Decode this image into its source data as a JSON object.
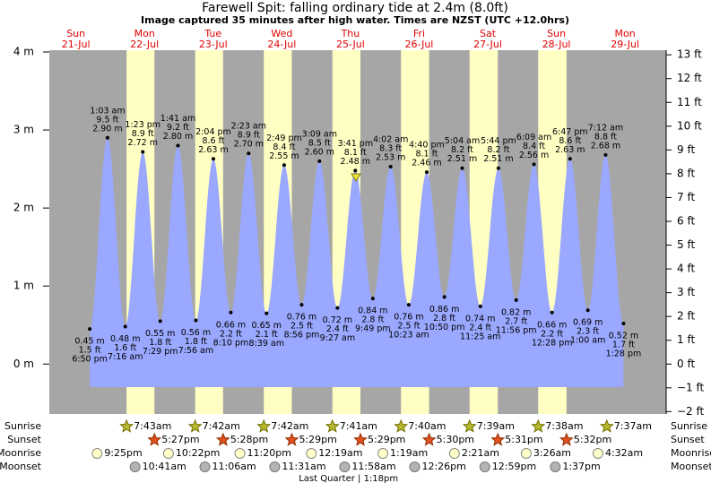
{
  "chart_data": {
    "type": "tide",
    "title": "Farewell Spit: falling  ordinary tide at 2.4m (8.0ft)",
    "subtitle": "Image captured 35 minutes after high water. Times are NZST (UTC +12.0hrs)",
    "ylim": [
      -0.64,
      4
    ],
    "yticks": [
      {
        "value": 0,
        "label": "0 m"
      },
      {
        "value": 1,
        "label": "1 m"
      },
      {
        "value": 2,
        "label": "2 m"
      },
      {
        "value": 3,
        "label": "3 m"
      },
      {
        "value": 4,
        "label": "4 m"
      }
    ],
    "y2lim": [
      -2.1,
      13.12
    ],
    "y2ticks": [
      {
        "value": -2,
        "label": "−2 ft"
      },
      {
        "value": -1,
        "label": "−1 ft"
      },
      {
        "value": 0,
        "label": "0 ft"
      },
      {
        "value": 1,
        "label": "1 ft"
      },
      {
        "value": 2,
        "label": "2 ft"
      },
      {
        "value": 3,
        "label": "3 ft"
      },
      {
        "value": 4,
        "label": "4 ft"
      },
      {
        "value": 5,
        "label": "5 ft"
      },
      {
        "value": 6,
        "label": "6 ft"
      },
      {
        "value": 7,
        "label": "7 ft"
      },
      {
        "value": 8,
        "label": "8 ft"
      },
      {
        "value": 9,
        "label": "9 ft"
      },
      {
        "value": 10,
        "label": "10 ft"
      },
      {
        "value": 11,
        "label": "11 ft"
      },
      {
        "value": 12,
        "label": "12 ft"
      },
      {
        "value": 13,
        "label": "13 ft"
      }
    ],
    "color": "#9aa8ff",
    "row_labels": [
      "Sunrise",
      "Sunset",
      "Moonrise",
      "Moonset"
    ],
    "days": [
      {
        "weekday": "Sun",
        "date": "21-Jul",
        "moonrise": "9:25pm",
        "tides": [
          {
            "time": "6:50 pm",
            "value": 0.45,
            "value_label": "0.45 m",
            "ft_label": "1.5 ft"
          }
        ]
      },
      {
        "weekday": "Mon",
        "date": "22-Jul",
        "sunrise": "7:43am",
        "sunset": "5:27pm",
        "moonrise": "10:22pm",
        "moonset": "10:41am",
        "tides": [
          {
            "time": "1:03 am",
            "value": 2.9,
            "value_label": "2.90 m",
            "ft_label": "9.5 ft"
          },
          {
            "time": "7:16 am",
            "value": 0.48,
            "value_label": "0.48 m",
            "ft_label": "1.6 ft"
          },
          {
            "time": "1:23 pm",
            "value": 2.72,
            "value_label": "2.72 m",
            "ft_label": "8.9 ft"
          },
          {
            "time": "7:29 pm",
            "value": 0.55,
            "value_label": "0.55 m",
            "ft_label": "1.8 ft"
          }
        ]
      },
      {
        "weekday": "Tue",
        "date": "23-Jul",
        "sunrise": "7:42am",
        "sunset": "5:28pm",
        "moonrise": "11:20pm",
        "moonset": "11:06am",
        "tides": [
          {
            "time": "1:41 am",
            "value": 2.8,
            "value_label": "2.80 m",
            "ft_label": "9.2 ft"
          },
          {
            "time": "7:56 am",
            "value": 0.56,
            "value_label": "0.56 m",
            "ft_label": "1.8 ft"
          },
          {
            "time": "2:04 pm",
            "value": 2.63,
            "value_label": "2.63 m",
            "ft_label": "8.6 ft"
          },
          {
            "time": "8:10 pm",
            "value": 0.66,
            "value_label": "0.66 m",
            "ft_label": "2.2 ft"
          }
        ]
      },
      {
        "weekday": "Wed",
        "date": "24-Jul",
        "sunrise": "7:42am",
        "sunset": "5:29pm",
        "moonset": "11:31am",
        "tides": [
          {
            "time": "2:23 am",
            "value": 2.7,
            "value_label": "2.70 m",
            "ft_label": "8.9 ft"
          },
          {
            "time": "8:39 am",
            "value": 0.65,
            "value_label": "0.65 m",
            "ft_label": "2.1 ft"
          },
          {
            "time": "2:49 pm",
            "value": 2.55,
            "value_label": "2.55 m",
            "ft_label": "8.4 ft"
          },
          {
            "time": "8:56 pm",
            "value": 0.76,
            "value_label": "0.76 m",
            "ft_label": "2.5 ft"
          }
        ]
      },
      {
        "weekday": "Thu",
        "date": "25-Jul",
        "sunrise": "7:41am",
        "sunset": "5:29pm",
        "moonrise": "12:19am",
        "moonset": "11:58am",
        "moon_phase": "Last Quarter | 1:18pm",
        "tides": [
          {
            "time": "3:09 am",
            "value": 2.6,
            "value_label": "2.60 m",
            "ft_label": "8.5 ft"
          },
          {
            "time": "9:27 am",
            "value": 0.72,
            "value_label": "0.72 m",
            "ft_label": "2.4 ft"
          },
          {
            "time": "3:41 pm",
            "value": 2.48,
            "value_label": "2.48 m",
            "ft_label": "8.1 ft"
          },
          {
            "time": "9:49 pm",
            "value": 0.84,
            "value_label": "0.84 m",
            "ft_label": "2.8 ft"
          }
        ]
      },
      {
        "weekday": "Fri",
        "date": "26-Jul",
        "sunrise": "7:40am",
        "sunset": "5:30pm",
        "moonrise": "1:19am",
        "moonset": "12:26pm",
        "tides": [
          {
            "time": "4:02 am",
            "value": 2.53,
            "value_label": "2.53 m",
            "ft_label": "8.3 ft"
          },
          {
            "time": "10:23 am",
            "value": 0.76,
            "value_label": "0.76 m",
            "ft_label": "2.5 ft"
          },
          {
            "time": "4:40 pm",
            "value": 2.46,
            "value_label": "2.46 m",
            "ft_label": "8.1 ft"
          },
          {
            "time": "10:50 pm",
            "value": 0.86,
            "value_label": "0.86 m",
            "ft_label": "2.8 ft"
          }
        ]
      },
      {
        "weekday": "Sat",
        "date": "27-Jul",
        "sunrise": "7:39am",
        "sunset": "5:31pm",
        "moonrise": "2:21am",
        "moonset": "12:59pm",
        "tides": [
          {
            "time": "5:04 am",
            "value": 2.51,
            "value_label": "2.51 m",
            "ft_label": "8.2 ft"
          },
          {
            "time": "11:25 am",
            "value": 0.74,
            "value_label": "0.74 m",
            "ft_label": "2.4 ft"
          },
          {
            "time": "5:44 pm",
            "value": 2.51,
            "value_label": "2.51 m",
            "ft_label": "8.2 ft"
          },
          {
            "time": "11:56 pm",
            "value": 0.82,
            "value_label": "0.82 m",
            "ft_label": "2.7 ft"
          }
        ]
      },
      {
        "weekday": "Sun",
        "date": "28-Jul",
        "sunrise": "7:38am",
        "sunset": "5:32pm",
        "moonrise": "3:26am",
        "moonset": "1:37pm",
        "tides": [
          {
            "time": "6:09 am",
            "value": 2.56,
            "value_label": "2.56 m",
            "ft_label": "8.4 ft"
          },
          {
            "time": "12:28 pm",
            "value": 0.66,
            "value_label": "0.66 m",
            "ft_label": "2.2 ft"
          },
          {
            "time": "6:47 pm",
            "value": 2.63,
            "value_label": "2.63 m",
            "ft_label": "8.6 ft"
          }
        ]
      },
      {
        "weekday": "Mon",
        "date": "29-Jul",
        "sunrise": "7:37am",
        "moonrise": "4:32am",
        "tides": [
          {
            "time": "1:00 am",
            "value": 0.69,
            "value_label": "0.69 m",
            "ft_label": "2.3 ft"
          },
          {
            "time": "7:12 am",
            "value": 2.68,
            "value_label": "2.68 m",
            "ft_label": "8.8 ft"
          },
          {
            "time": "1:28 pm",
            "value": 0.52,
            "value_label": "0.52 m",
            "ft_label": "1.7 ft"
          }
        ]
      }
    ]
  }
}
